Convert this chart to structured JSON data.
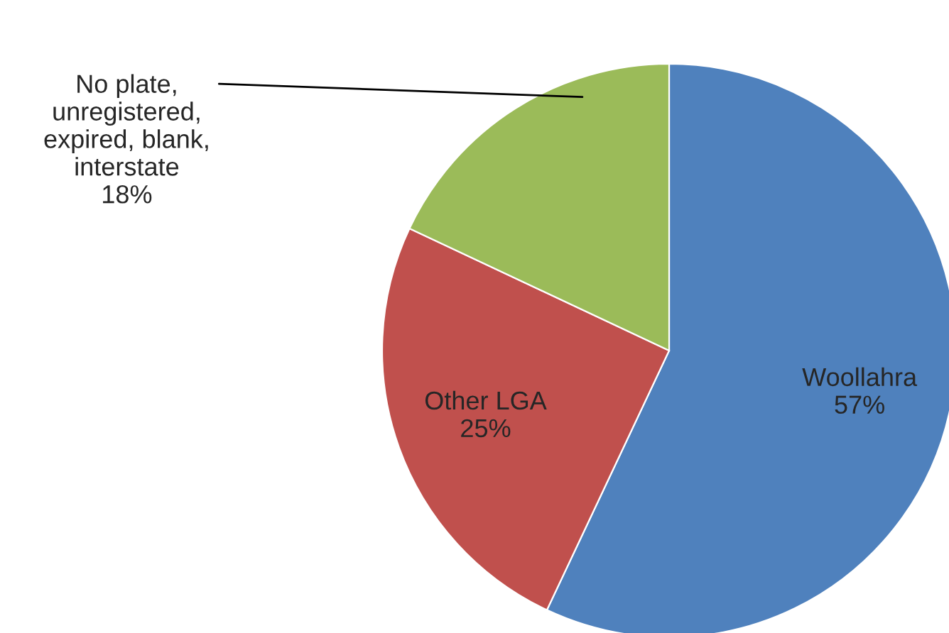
{
  "chart_data": {
    "type": "pie",
    "categories": [
      "Woollahra",
      "Other LGA",
      "No plate,\nunregistered,\nexpired, blank,\ninterstate"
    ],
    "values": [
      57,
      25,
      18
    ],
    "value_labels": [
      "57%",
      "25%",
      "18%"
    ],
    "colors": [
      "#4f81bd",
      "#c0504d",
      "#9bbb59"
    ],
    "legend": false
  }
}
